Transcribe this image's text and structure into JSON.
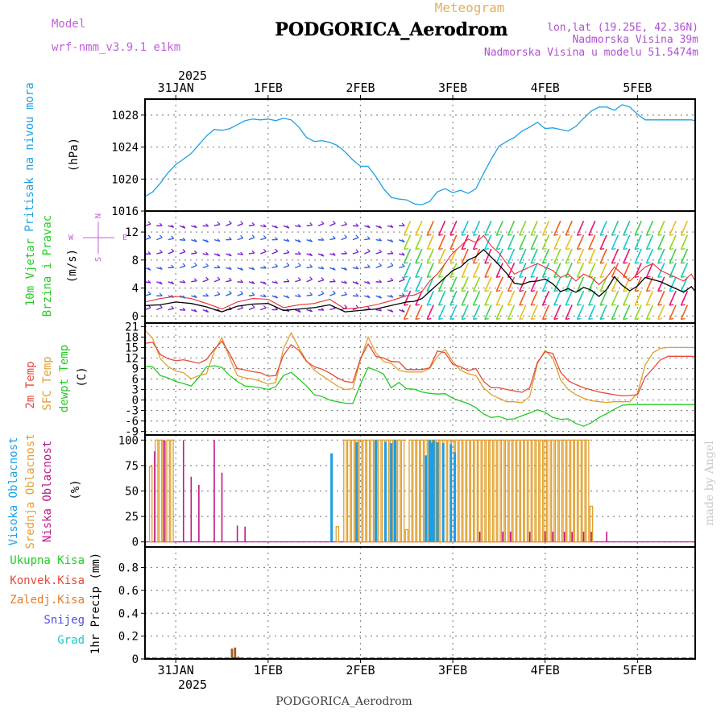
{
  "header": {
    "model_label": "Model",
    "model_name": "wrf-nmm_v3.9.1  e1km",
    "meteogram_label": "Meteogram",
    "station_title": "PODGORICA_Aerodrom",
    "lonlat": "lon,lat (19.25E, 42.36N)",
    "altitude": "Nadmorska Visina 39m",
    "model_altitude": "Nadmorska Visina u modelu 51.5474m"
  },
  "footer": {
    "station": "PODGORICA_Aerodrom",
    "credit": "made by Angel"
  },
  "colors": {
    "pressure": "#1ea0e6",
    "t2m": "#e8483a",
    "sfc": "#e0a030",
    "dew": "#22cc22",
    "high_cloud": "#1e9ee6",
    "mid_cloud": "#e0a030",
    "low_cloud": "#c0168c",
    "precip_total": "#22cc22",
    "precip_conv": "#e8483a",
    "precip_frozen": "#e87a20",
    "snow": "#5050e0",
    "hail": "#20c8c8",
    "wind_speed": "#000000",
    "gust": "#e83030",
    "credit": "#c8c8c8"
  },
  "time_axis": {
    "year": "2025",
    "days": [
      "31JAN",
      "1FEB",
      "2FEB",
      "3FEB",
      "4FEB",
      "5FEB"
    ],
    "start_hours": -8,
    "end_hours": 135
  },
  "chart_data": [
    {
      "type": "line",
      "name": "pressure",
      "ylabel": "Pritisak na nivou mora",
      "unit": "(hPa)",
      "ylim": [
        1016,
        1030
      ],
      "yticks": [
        1016,
        1020,
        1024,
        1028
      ],
      "x_hours": [
        -8,
        -6,
        -4,
        -2,
        0,
        2,
        4,
        6,
        8,
        10,
        12,
        14,
        16,
        18,
        20,
        22,
        24,
        26,
        28,
        30,
        32,
        34,
        36,
        38,
        40,
        42,
        44,
        46,
        48,
        50,
        52,
        54,
        56,
        58,
        60,
        62,
        64,
        66,
        68,
        70,
        72,
        74,
        76,
        78,
        80,
        82,
        84,
        86,
        88,
        90,
        92,
        94,
        96,
        98,
        100,
        102,
        104,
        106,
        108,
        110,
        112,
        114,
        116,
        118,
        120,
        122,
        124,
        126,
        128,
        130,
        132,
        134,
        135
      ],
      "values": [
        1017.8,
        1018.4,
        1019.5,
        1020.8,
        1021.8,
        1022.5,
        1023.2,
        1024.3,
        1025.4,
        1026.2,
        1026.1,
        1026.3,
        1026.8,
        1027.3,
        1027.5,
        1027.4,
        1027.5,
        1027.3,
        1027.6,
        1027.4,
        1026.5,
        1025.2,
        1024.7,
        1024.8,
        1024.6,
        1024.2,
        1023.4,
        1022.4,
        1021.6,
        1021.6,
        1020.3,
        1018.8,
        1017.7,
        1017.5,
        1017.4,
        1016.9,
        1016.8,
        1017.2,
        1018.4,
        1018.8,
        1018.3,
        1018.6,
        1018.2,
        1018.8,
        1020.7,
        1022.5,
        1024.1,
        1024.7,
        1025.2,
        1026.0,
        1026.5,
        1027.1,
        1026.3,
        1026.4,
        1026.2,
        1026.0,
        1026.6,
        1027.6,
        1028.5,
        1029.0,
        1029.0,
        1028.6,
        1029.3,
        1029.0,
        1028.1,
        1027.4,
        1027.4,
        1027.4,
        1027.4,
        1027.4,
        1027.4,
        1027.4,
        1027.3
      ]
    },
    {
      "type": "line",
      "name": "wind",
      "ylabel": "10m Vjetar",
      "ylabel2": "Brzina i Pravac",
      "unit": "(m/s)",
      "compass": {
        "n": "N",
        "s": "S",
        "e": "E",
        "w": "W"
      },
      "ylim": [
        -1,
        15
      ],
      "yticks": [
        0,
        4,
        8,
        12
      ],
      "x_hours": [
        -8,
        -4,
        0,
        4,
        8,
        12,
        16,
        20,
        24,
        28,
        32,
        36,
        40,
        44,
        48,
        52,
        56,
        60,
        62,
        64,
        66,
        68,
        70,
        72,
        74,
        76,
        78,
        80,
        82,
        84,
        86,
        88,
        90,
        92,
        94,
        96,
        98,
        100,
        102,
        104,
        106,
        108,
        110,
        112,
        114,
        116,
        118,
        120,
        122,
        124,
        126,
        128,
        130,
        132,
        134,
        135
      ],
      "speed": [
        1.5,
        1.6,
        2.0,
        1.8,
        1.3,
        0.6,
        1.4,
        1.7,
        1.8,
        0.8,
        1.0,
        1.2,
        1.6,
        0.6,
        0.8,
        1.0,
        1.5,
        2.0,
        2.1,
        2.5,
        3.5,
        4.5,
        5.5,
        6.5,
        7.0,
        8.0,
        8.5,
        9.5,
        8.4,
        7.3,
        6.1,
        4.7,
        4.5,
        4.9,
        5.0,
        5.3,
        4.6,
        3.5,
        3.9,
        3.4,
        4.1,
        3.7,
        2.8,
        3.8,
        5.6,
        4.4,
        3.6,
        4.3,
        5.5,
        5.2,
        4.9,
        4.4,
        3.9,
        3.4,
        4.2,
        3.5
      ],
      "gust": [
        2.0,
        2.5,
        2.8,
        2.5,
        1.8,
        1.0,
        2.0,
        2.5,
        2.4,
        1.2,
        1.6,
        1.8,
        2.4,
        1.0,
        1.2,
        1.6,
        2.2,
        2.9,
        3.0,
        3.5,
        5.0,
        6.0,
        7.5,
        9.0,
        10.0,
        11.0,
        10.5,
        11.5,
        10.0,
        9.0,
        7.5,
        6.0,
        6.5,
        7.0,
        7.5,
        7.0,
        6.5,
        5.5,
        6.0,
        5.0,
        6.0,
        5.5,
        4.5,
        5.5,
        7.0,
        6.0,
        5.0,
        6.0,
        7.0,
        7.5,
        6.5,
        6.0,
        5.5,
        5.0,
        6.0,
        5.0
      ]
    },
    {
      "type": "line",
      "name": "temperature",
      "ylabels": [
        "2m Temp",
        "SFC Temp",
        "dewpt Temp"
      ],
      "unit": "(C)",
      "ylim": [
        -10,
        22
      ],
      "yticks": [
        -9,
        -6,
        -3,
        0,
        3,
        6,
        9,
        12,
        15,
        18,
        21
      ],
      "x_hours": [
        -8,
        -6,
        -4,
        -2,
        0,
        2,
        4,
        6,
        8,
        10,
        12,
        14,
        16,
        18,
        20,
        22,
        24,
        26,
        28,
        30,
        32,
        34,
        36,
        38,
        40,
        42,
        44,
        46,
        48,
        50,
        52,
        54,
        56,
        58,
        60,
        62,
        64,
        66,
        68,
        70,
        72,
        74,
        76,
        78,
        80,
        82,
        84,
        86,
        88,
        90,
        92,
        94,
        96,
        98,
        100,
        102,
        104,
        106,
        108,
        110,
        112,
        114,
        116,
        118,
        120,
        122,
        124,
        126,
        128,
        130,
        132,
        134,
        135
      ],
      "t2m": [
        16.2,
        16.5,
        13.0,
        11.8,
        11.2,
        11.5,
        11.0,
        10.5,
        11.6,
        14.5,
        16.8,
        13.2,
        9.0,
        8.6,
        8.1,
        7.8,
        6.8,
        7.0,
        12.8,
        15.8,
        14.2,
        11.0,
        9.5,
        8.8,
        7.7,
        6.3,
        5.3,
        5.0,
        11.8,
        16.0,
        12.5,
        12.0,
        11.0,
        10.9,
        8.7,
        8.7,
        8.7,
        9.2,
        14.0,
        13.5,
        10.2,
        9.5,
        8.4,
        9.0,
        5.3,
        3.5,
        3.5,
        3.0,
        2.6,
        2.2,
        3.5,
        10.8,
        13.8,
        13.3,
        8.0,
        5.5,
        4.4,
        3.5,
        2.9,
        2.3,
        1.9,
        1.5,
        1.2,
        1.3,
        1.5,
        6.5,
        9.0,
        11.5,
        12.5,
        12.5,
        12.5,
        12.5,
        12.4
      ],
      "sfc": [
        20.0,
        17.5,
        11.8,
        9.5,
        8.3,
        7.8,
        6.1,
        7.0,
        7.5,
        14.0,
        17.8,
        12.0,
        7.0,
        6.3,
        6.0,
        5.4,
        4.5,
        5.0,
        14.7,
        19.2,
        15.0,
        11.2,
        8.5,
        7.0,
        5.5,
        4.0,
        3.0,
        3.2,
        11.5,
        18.0,
        13.5,
        11.0,
        10.5,
        8.5,
        8.0,
        8.0,
        8.0,
        9.0,
        12.5,
        14.5,
        11.0,
        8.5,
        7.5,
        7.0,
        3.5,
        1.5,
        0.5,
        -0.5,
        -0.5,
        -0.8,
        1.0,
        10.5,
        14.2,
        12.0,
        5.8,
        3.0,
        1.5,
        0.5,
        -0.2,
        -0.5,
        -0.7,
        -0.5,
        -0.5,
        -0.5,
        2.0,
        10.0,
        13.5,
        14.8,
        15.0,
        15.0,
        15.0,
        15.0,
        14.9
      ],
      "dew": [
        9.6,
        9.5,
        7.0,
        6.3,
        5.3,
        4.7,
        4.0,
        6.5,
        9.5,
        9.8,
        9.3,
        7.0,
        5.3,
        4.0,
        3.8,
        3.5,
        3.0,
        3.8,
        7.0,
        7.9,
        6.0,
        4.0,
        1.5,
        1.0,
        0.0,
        -0.5,
        -0.9,
        -1.0,
        4.5,
        9.3,
        8.5,
        7.4,
        3.5,
        5.0,
        3.2,
        3.1,
        2.3,
        1.9,
        1.7,
        1.8,
        0.5,
        -0.3,
        -1.0,
        -2.2,
        -4.0,
        -5.0,
        -4.7,
        -5.5,
        -5.4,
        -4.5,
        -3.7,
        -2.8,
        -3.5,
        -5.0,
        -5.5,
        -5.4,
        -6.7,
        -7.5,
        -6.5,
        -5.0,
        -3.9,
        -2.6,
        -1.5,
        -1.3,
        -1.3,
        -1.3,
        -1.3,
        -1.3,
        -1.3,
        -1.3,
        -1.3,
        -1.3,
        -1.3
      ]
    },
    {
      "type": "bar",
      "name": "clouds",
      "ylabels": [
        "Visoka Oblacnost",
        "Srednja Oblacnost",
        "Niska Oblacnost"
      ],
      "unit": "(%)",
      "ylim": [
        -5,
        105
      ],
      "yticks": [
        0,
        25,
        50,
        75,
        100
      ],
      "high_x": [
        40.5,
        47,
        52,
        54.5,
        56,
        57,
        65,
        66,
        66.5,
        67,
        68,
        69.5,
        71.5,
        72.5
      ],
      "high_v": [
        87,
        98,
        100,
        98,
        97,
        100,
        85,
        100,
        97,
        100,
        98,
        97,
        96,
        88
      ],
      "mid_x": [
        -6.5,
        -5,
        -4,
        -3,
        -2,
        -1,
        42,
        44,
        45,
        46,
        47,
        48,
        49,
        50,
        51,
        52,
        53,
        54,
        55,
        56,
        57,
        58,
        59,
        60,
        61,
        62,
        63,
        64,
        65,
        66,
        67,
        68,
        69,
        70,
        71,
        72,
        73,
        74,
        75,
        76,
        77,
        78,
        79,
        80,
        81,
        82,
        83,
        84,
        85,
        86,
        87,
        88,
        89,
        90,
        91,
        92,
        93,
        94,
        95,
        96,
        97,
        98,
        99,
        100,
        101,
        102,
        103,
        104,
        105,
        106,
        107,
        108
      ],
      "mid_v": [
        74,
        100,
        100,
        99,
        100,
        100,
        15,
        100,
        100,
        100,
        100,
        100,
        100,
        100,
        100,
        100,
        100,
        100,
        100,
        100,
        100,
        100,
        100,
        12,
        100,
        100,
        100,
        100,
        100,
        100,
        100,
        100,
        100,
        100,
        100,
        100,
        100,
        100,
        100,
        100,
        100,
        100,
        100,
        100,
        100,
        100,
        100,
        100,
        100,
        100,
        100,
        100,
        100,
        100,
        100,
        100,
        100,
        100,
        100,
        100,
        100,
        100,
        100,
        100,
        100,
        100,
        100,
        100,
        100,
        100,
        100,
        35
      ],
      "low_x": [
        -5.5,
        -3,
        2,
        4,
        6,
        10,
        12,
        16,
        18,
        79,
        85,
        87,
        92,
        96,
        98,
        101,
        103,
        106,
        108,
        112
      ],
      "low_v": [
        89,
        100,
        100,
        64,
        56,
        100,
        68,
        16,
        15,
        10,
        10,
        10,
        10,
        10,
        10,
        10,
        10,
        10,
        10,
        10
      ]
    },
    {
      "type": "bar",
      "name": "precipitation",
      "ylabels": [
        "Ukupna Kisa",
        "Konvek.Kisa",
        "Zaledj.Kisa",
        "Snijeg",
        "Grad"
      ],
      "ylabel": "1hr Precip (mm)",
      "ylim": [
        0,
        0.98
      ],
      "yticks": [
        0,
        0.2,
        0.4,
        0.6,
        0.8
      ],
      "ytick_labels": [
        "0",
        "0.2",
        "0.4",
        "0.6",
        "0.8"
      ],
      "x_hours": [
        14.6,
        15.4,
        16.2
      ],
      "total": [
        0.09,
        0.1,
        0.02
      ],
      "convective": [
        0.0,
        0.0,
        0.0
      ],
      "frozen": [
        0.0,
        0.0,
        0.0
      ],
      "snow": [
        0.0,
        0.0,
        0.0
      ],
      "hail": [
        0.0,
        0.0,
        0.0
      ]
    }
  ]
}
